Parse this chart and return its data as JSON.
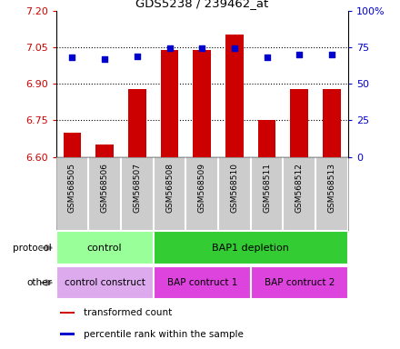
{
  "title": "GDS5238 / 239462_at",
  "samples": [
    "GSM568505",
    "GSM568506",
    "GSM568507",
    "GSM568508",
    "GSM568509",
    "GSM568510",
    "GSM568511",
    "GSM568512",
    "GSM568513"
  ],
  "bar_values": [
    6.7,
    6.65,
    6.88,
    7.04,
    7.04,
    7.1,
    6.75,
    6.88,
    6.88
  ],
  "scatter_values": [
    68,
    67,
    69,
    74,
    74,
    74,
    68,
    70,
    70
  ],
  "ylim_left": [
    6.6,
    7.2
  ],
  "ylim_right": [
    0,
    100
  ],
  "yticks_left": [
    6.6,
    6.75,
    6.9,
    7.05,
    7.2
  ],
  "yticks_right": [
    0,
    25,
    50,
    75,
    100
  ],
  "bar_color": "#cc0000",
  "scatter_color": "#0000cc",
  "protocol_groups": [
    {
      "label": "control",
      "start": 0,
      "end": 3,
      "color": "#99ff99"
    },
    {
      "label": "BAP1 depletion",
      "start": 3,
      "end": 9,
      "color": "#33cc33"
    }
  ],
  "other_groups": [
    {
      "label": "control construct",
      "start": 0,
      "end": 3,
      "color": "#ddaaee"
    },
    {
      "label": "BAP contruct 1",
      "start": 3,
      "end": 6,
      "color": "#dd44dd"
    },
    {
      "label": "BAP contruct 2",
      "start": 6,
      "end": 9,
      "color": "#dd44dd"
    }
  ],
  "legend_items": [
    {
      "label": "transformed count",
      "color": "#cc0000"
    },
    {
      "label": "percentile rank within the sample",
      "color": "#0000cc"
    }
  ],
  "dotted_lines": [
    6.75,
    6.9,
    7.05
  ],
  "background_color": "#ffffff",
  "tick_color_left": "#cc0000",
  "tick_color_right": "#0000cc",
  "xlabels_bg": "#cccccc",
  "xlabels_divider": "#ffffff"
}
